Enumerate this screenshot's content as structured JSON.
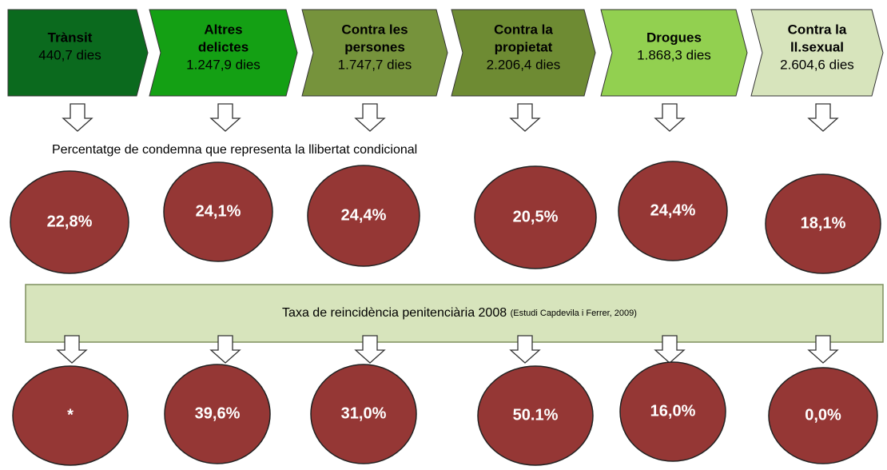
{
  "categories": [
    {
      "name": [
        "Trànsit"
      ],
      "days": "440,7 dies",
      "color": "#0b6a1e"
    },
    {
      "name": [
        "Altres",
        "delictes"
      ],
      "days": "1.247,9 dies",
      "color": "#14a014"
    },
    {
      "name": [
        "Contra les",
        "persones"
      ],
      "days": "1.747,7 dies",
      "color": "#76933c"
    },
    {
      "name": [
        "Contra la",
        "propietat"
      ],
      "days": "2.206,4 dies",
      "color": "#6e8b33"
    },
    {
      "name": [
        "Drogues"
      ],
      "days": "1.868,3 dies",
      "color": "#92d050"
    },
    {
      "name": [
        "Contra la",
        "ll.sexual"
      ],
      "days": "2.604,6 dies",
      "color": "#d7e4bc"
    }
  ],
  "caption": "Percentatge de condemna que representa la llibertat condicional",
  "parole_percentages": [
    "22,8%",
    "24,1%",
    "24,4%",
    "20,5%",
    "24,4%",
    "18,1%"
  ],
  "banner": {
    "title": "Taxa de reincidència penitenciària 2008",
    "source": "(Estudi Capdevila i Ferrer, 2009)"
  },
  "reoffence_rates": [
    "*",
    "39,6%",
    "31,0%",
    "50.1%",
    "16,0%",
    "0,0%"
  ]
}
